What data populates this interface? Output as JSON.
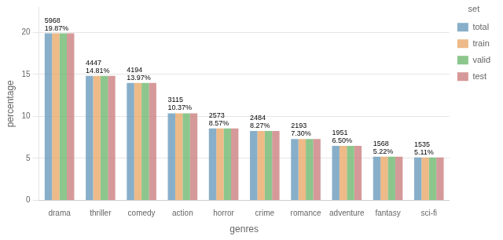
{
  "chart_data": {
    "type": "bar",
    "categories": [
      "drama",
      "thriller",
      "comedy",
      "action",
      "horror",
      "crime",
      "romance",
      "adventure",
      "fantasy",
      "sci-fi"
    ],
    "series": [
      {
        "name": "total",
        "color": "#6a9bbb",
        "values": [
          19.87,
          14.81,
          13.97,
          10.37,
          8.57,
          8.27,
          7.3,
          6.5,
          5.22,
          5.11
        ]
      },
      {
        "name": "train",
        "color": "#e8a96a",
        "values": [
          19.87,
          14.81,
          13.97,
          10.37,
          8.57,
          8.27,
          7.3,
          6.5,
          5.22,
          5.11
        ]
      },
      {
        "name": "valid",
        "color": "#6fb86f",
        "values": [
          19.87,
          14.81,
          13.97,
          10.37,
          8.57,
          8.27,
          7.3,
          6.5,
          5.22,
          5.11
        ]
      },
      {
        "name": "test",
        "color": "#cc8080",
        "values": [
          19.87,
          14.81,
          13.97,
          10.37,
          8.57,
          8.27,
          7.3,
          6.5,
          5.22,
          5.11
        ]
      }
    ],
    "xlabel": "genres",
    "ylabel": "percentage",
    "legend_title": "set",
    "legend": "upper right",
    "ylim": [
      0,
      23
    ],
    "yticks": [
      0,
      5,
      10,
      15,
      20
    ],
    "grid": true,
    "annotations": [
      {
        "category": "drama",
        "texts": [
          "19.87%",
          "5968"
        ]
      },
      {
        "category": "thriller",
        "texts": [
          "14.81%",
          "4447"
        ]
      },
      {
        "category": "comedy",
        "texts": [
          "13.97%",
          "4194"
        ]
      },
      {
        "category": "action",
        "texts": [
          "10.37%",
          "3115"
        ]
      },
      {
        "category": "horror",
        "texts": [
          "8.57%",
          "2573"
        ]
      },
      {
        "category": "crime",
        "texts": [
          "8.27%",
          "2484"
        ]
      },
      {
        "category": "romance",
        "texts": [
          "7.30%",
          "2193"
        ]
      },
      {
        "category": "adventure",
        "texts": [
          "6.50%",
          "1951"
        ]
      },
      {
        "category": "fantasy",
        "texts": [
          "5.22%",
          "1568"
        ]
      },
      {
        "category": "sci-fi",
        "texts": [
          "5.11%",
          "1535"
        ]
      }
    ]
  }
}
